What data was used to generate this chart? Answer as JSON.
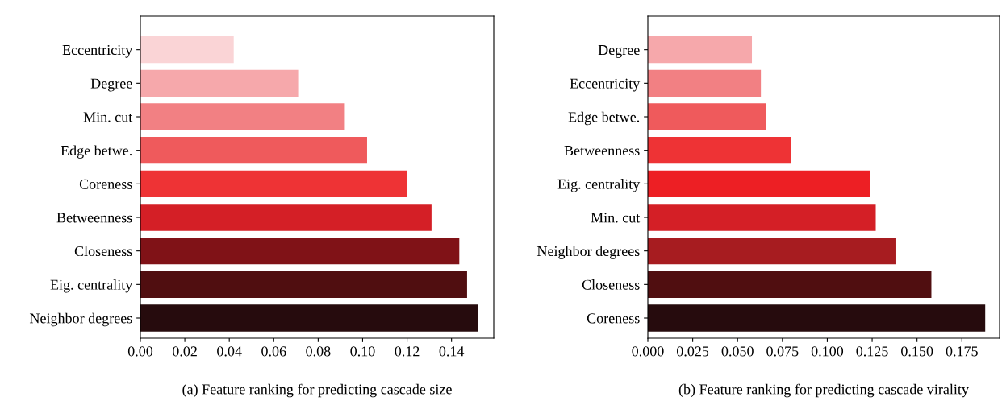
{
  "chart_data": [
    {
      "type": "bar",
      "orientation": "horizontal",
      "xlabel": "(a) Feature ranking for predicting cascade size",
      "categories": [
        "Eccentricity",
        "Degree",
        "Min. cut",
        "Edge betwe.",
        "Coreness",
        "Betweenness",
        "Closeness",
        "Eig. centrality",
        "Neighbor degrees"
      ],
      "values": [
        0.042,
        0.071,
        0.092,
        0.102,
        0.12,
        0.131,
        0.1435,
        0.147,
        0.152
      ],
      "colors": [
        "#fad4d6",
        "#f6a8ab",
        "#f28083",
        "#ef5a5c",
        "#ee3335",
        "#d41f26",
        "#801217",
        "#500e10",
        "#260b0d"
      ],
      "xlim": [
        0,
        0.159
      ],
      "xticks": [
        {
          "value": 0,
          "label": "0.00"
        },
        {
          "value": 0.02,
          "label": "0.02"
        },
        {
          "value": 0.04,
          "label": "0.04"
        },
        {
          "value": 0.06,
          "label": "0.06"
        },
        {
          "value": 0.08,
          "label": "0.08"
        },
        {
          "value": 0.1,
          "label": "0.10"
        },
        {
          "value": 0.12,
          "label": "0.12"
        },
        {
          "value": 0.14,
          "label": "0.14"
        }
      ],
      "grid": false,
      "legend": false
    },
    {
      "type": "bar",
      "orientation": "horizontal",
      "xlabel": "(b) Feature ranking for predicting cascade virality",
      "categories": [
        "Degree",
        "Eccentricity",
        "Edge betwe.",
        "Betweenness",
        "Eig. centrality",
        "Min. cut",
        "Neighbor degrees",
        "Closeness",
        "Coreness"
      ],
      "values": [
        0.058,
        0.063,
        0.066,
        0.08,
        0.124,
        0.127,
        0.138,
        0.158,
        0.188
      ],
      "colors": [
        "#f6a8ab",
        "#f28083",
        "#ef5a5c",
        "#ee3335",
        "#ed1f24",
        "#d41f26",
        "#a71c20",
        "#500e10",
        "#260b0d"
      ],
      "xlim": [
        0,
        0.196
      ],
      "xticks": [
        {
          "value": 0,
          "label": "0.000"
        },
        {
          "value": 0.025,
          "label": "0.025"
        },
        {
          "value": 0.05,
          "label": "0.050"
        },
        {
          "value": 0.075,
          "label": "0.075"
        },
        {
          "value": 0.1,
          "label": "0.100"
        },
        {
          "value": 0.125,
          "label": "0.125"
        },
        {
          "value": 0.15,
          "label": "0.150"
        },
        {
          "value": 0.175,
          "label": "0.175"
        }
      ],
      "grid": false,
      "legend": false
    }
  ]
}
